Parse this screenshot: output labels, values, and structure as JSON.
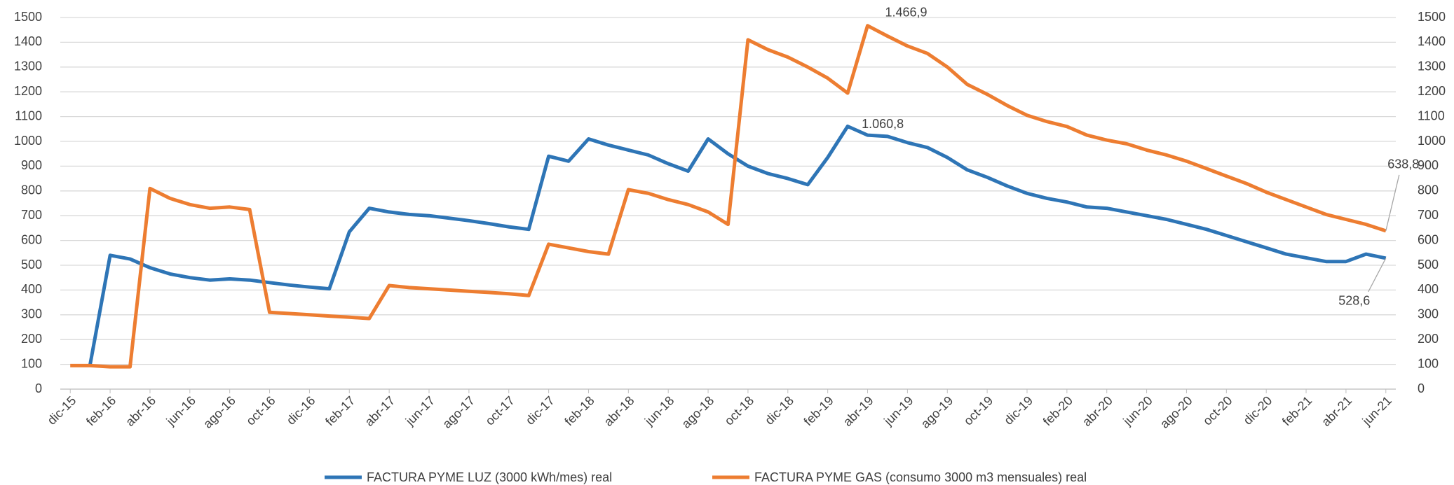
{
  "chart_data": {
    "type": "line",
    "categories": [
      "dic-15",
      null,
      "feb-16",
      null,
      "abr-16",
      null,
      "jun-16",
      null,
      "ago-16",
      null,
      "oct-16",
      null,
      "dic-16",
      null,
      "feb-17",
      null,
      "abr-17",
      null,
      "jun-17",
      null,
      "ago-17",
      null,
      "oct-17",
      null,
      "dic-17",
      null,
      "feb-18",
      null,
      "abr-18",
      null,
      "jun-18",
      null,
      "ago-18",
      null,
      "oct-18",
      null,
      "dic-18",
      null,
      "feb-19",
      null,
      "abr-19",
      null,
      "jun-19",
      null,
      "ago-19",
      null,
      "oct-19",
      null,
      "dic-19",
      null,
      "feb-20",
      null,
      "abr-20",
      null,
      "jun-20",
      null,
      "ago-20",
      null,
      "oct-20",
      null,
      "dic-20",
      null,
      "feb-21",
      null,
      "abr-21",
      null,
      "jun-21"
    ],
    "series": [
      {
        "name": "FACTURA PYME LUZ (3000 kWh/mes) real",
        "color": "#2e75b6",
        "values": [
          null,
          100,
          540,
          525,
          490,
          465,
          450,
          440,
          445,
          440,
          430,
          420,
          412,
          405,
          635,
          730,
          715,
          705,
          700,
          690,
          680,
          668,
          655,
          645,
          940,
          920,
          1010,
          985,
          965,
          945,
          910,
          880,
          1010,
          950,
          900,
          870,
          850,
          825,
          935,
          1060.8,
          1025,
          1020,
          995,
          975,
          935,
          885,
          855,
          820,
          790,
          770,
          755,
          735,
          730,
          715,
          700,
          685,
          665,
          645,
          620,
          595,
          570,
          545,
          530,
          515,
          515,
          545,
          528.6
        ],
        "value_labels": [
          null,
          null,
          null,
          null,
          null,
          null,
          null,
          null,
          null,
          null,
          null,
          null,
          null,
          null,
          null,
          null,
          null,
          null,
          null,
          null,
          null,
          null,
          null,
          null,
          null,
          null,
          null,
          null,
          null,
          null,
          null,
          null,
          null,
          null,
          null,
          null,
          null,
          null,
          null,
          "1.060,8",
          null,
          null,
          null,
          null,
          null,
          null,
          null,
          null,
          null,
          null,
          null,
          null,
          null,
          null,
          null,
          null,
          null,
          null,
          null,
          null,
          null,
          null,
          null,
          null,
          null,
          null,
          "528,6"
        ]
      },
      {
        "name": "FACTURA PYME GAS (consumo 3000 m3 mensuales) real",
        "color": "#ed7d31",
        "axis": "y2",
        "values": [
          95,
          95,
          90,
          90,
          810,
          770,
          745,
          730,
          735,
          725,
          310,
          305,
          300,
          295,
          290,
          285,
          418,
          410,
          405,
          400,
          395,
          390,
          385,
          378,
          585,
          570,
          555,
          545,
          805,
          790,
          765,
          745,
          715,
          665,
          1410,
          1370,
          1340,
          1300,
          1255,
          1195,
          1466.9,
          1425,
          1385,
          1355,
          1300,
          1230,
          1190,
          1145,
          1105,
          1080,
          1060,
          1025,
          1005,
          990,
          965,
          945,
          920,
          890,
          860,
          830,
          795,
          765,
          735,
          705,
          685,
          665,
          638.8
        ],
        "value_labels": [
          null,
          null,
          null,
          null,
          null,
          null,
          null,
          null,
          null,
          null,
          null,
          null,
          null,
          null,
          null,
          null,
          null,
          null,
          null,
          null,
          null,
          null,
          null,
          null,
          null,
          null,
          null,
          null,
          null,
          null,
          null,
          null,
          null,
          null,
          null,
          null,
          null,
          null,
          null,
          null,
          "1.466,9",
          null,
          null,
          null,
          null,
          null,
          null,
          null,
          null,
          null,
          null,
          null,
          null,
          null,
          null,
          null,
          null,
          null,
          null,
          null,
          null,
          null,
          null,
          null,
          null,
          null,
          "638,8"
        ]
      }
    ],
    "ylim": [
      0,
      1500
    ],
    "yticks": [
      0,
      100,
      200,
      300,
      400,
      500,
      600,
      700,
      800,
      900,
      1000,
      1100,
      1200,
      1300,
      1400,
      1500
    ],
    "y2lim": [
      0,
      1500
    ],
    "y2ticks": [
      0,
      100,
      200,
      300,
      400,
      500,
      600,
      700,
      800,
      900,
      1000,
      1100,
      1200,
      1300,
      1400,
      1500
    ],
    "grid": true,
    "legend": "bottom"
  }
}
